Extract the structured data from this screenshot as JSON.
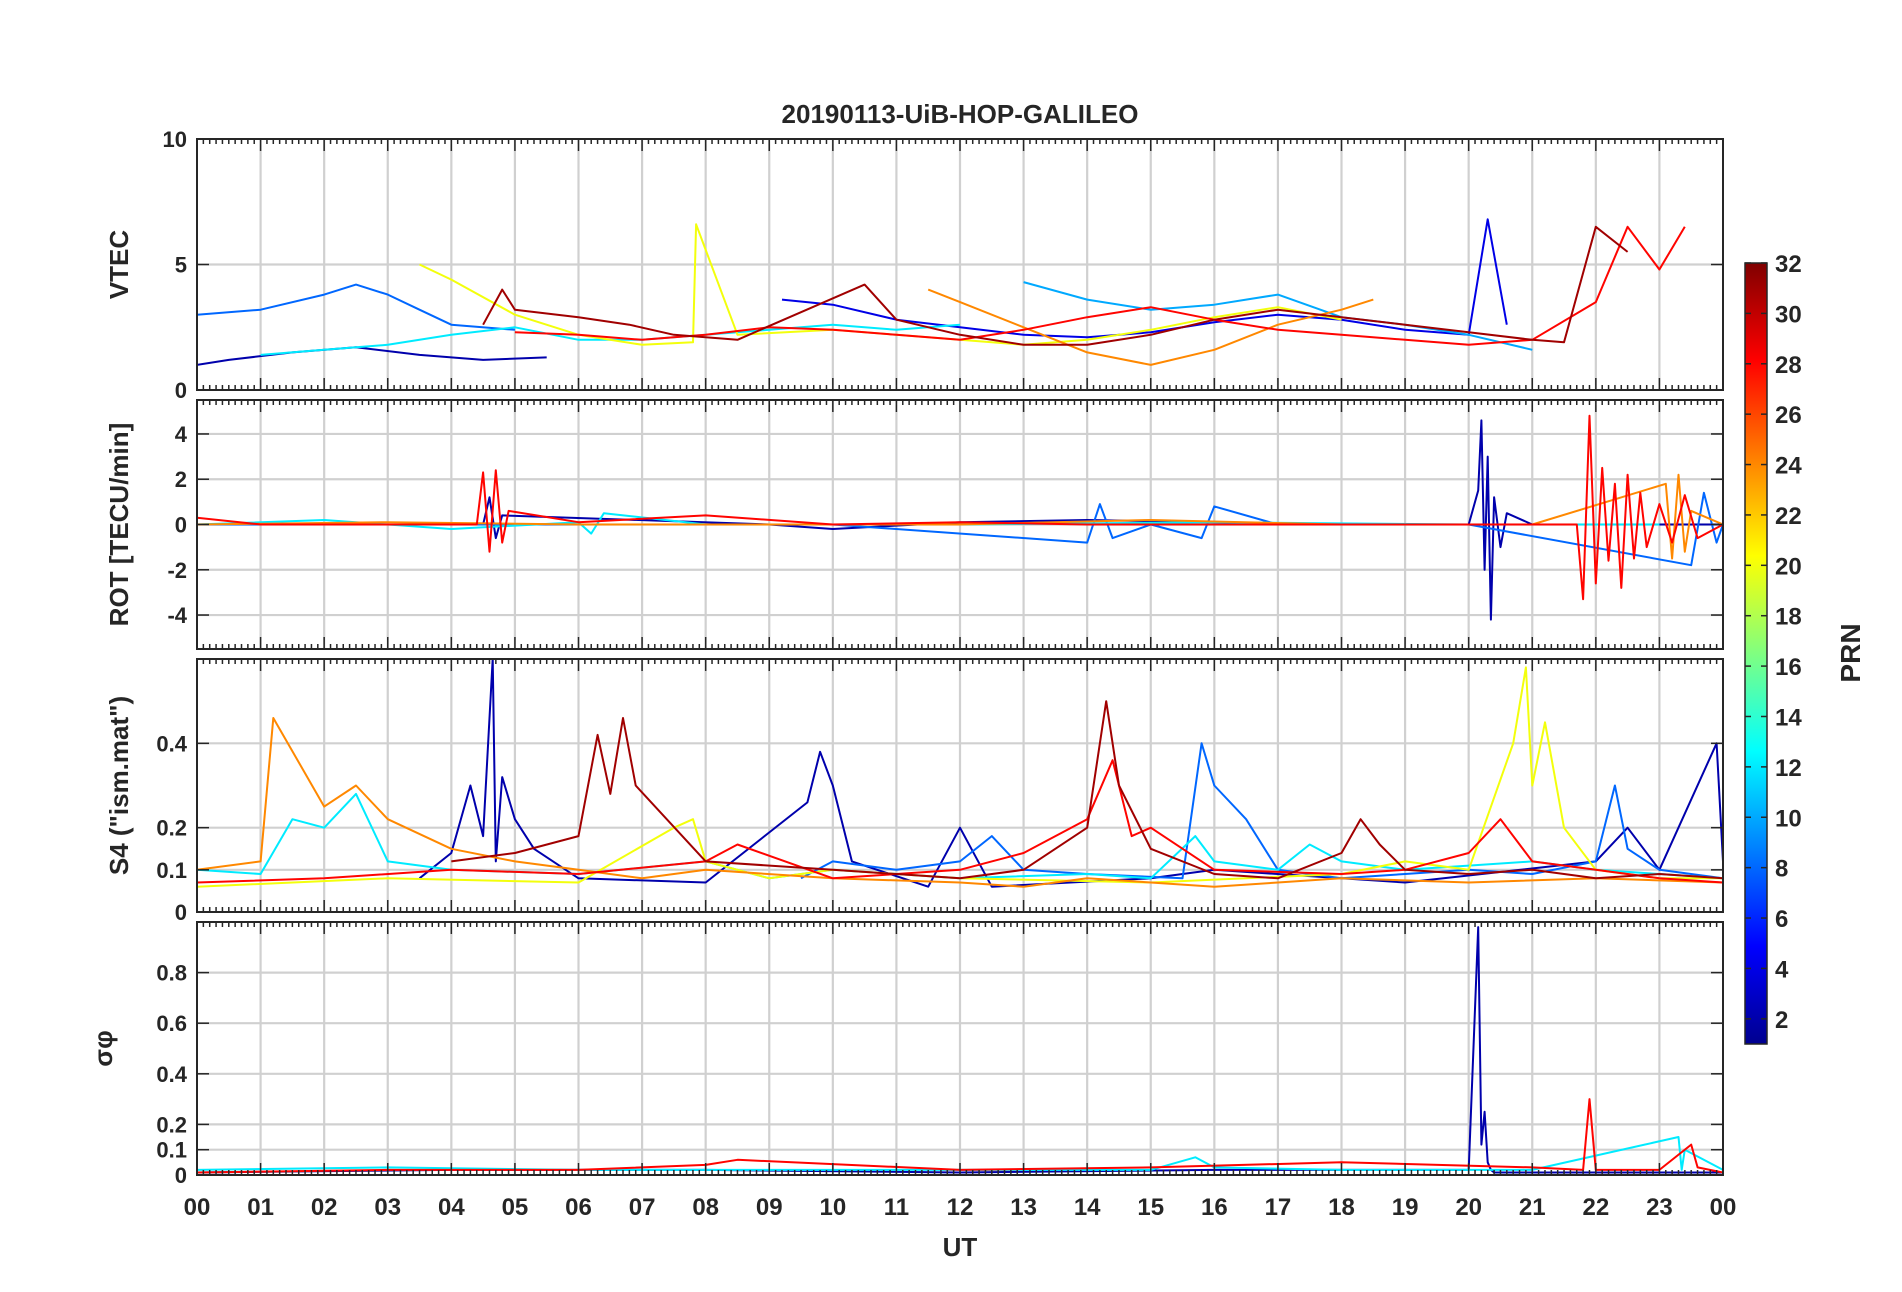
{
  "title": "20190113-UiB-HOP-GALILEO",
  "x_axis": {
    "label": "UT",
    "ticks": [
      "00",
      "01",
      "02",
      "03",
      "04",
      "05",
      "06",
      "07",
      "08",
      "09",
      "10",
      "11",
      "12",
      "13",
      "14",
      "15",
      "16",
      "17",
      "18",
      "19",
      "20",
      "21",
      "22",
      "23",
      "00"
    ],
    "range_hours": [
      0,
      24
    ]
  },
  "colorbar": {
    "label": "PRN",
    "range": [
      1,
      32
    ],
    "tick_labels": [
      "2",
      "4",
      "6",
      "8",
      "10",
      "12",
      "14",
      "16",
      "18",
      "20",
      "22",
      "24",
      "26",
      "28",
      "30",
      "32"
    ],
    "colormap": "jet",
    "stops": [
      "#00008f",
      "#0000ff",
      "#0080ff",
      "#00ffff",
      "#80ff80",
      "#ffff00",
      "#ff8000",
      "#ff0000",
      "#800000"
    ]
  },
  "chart_data": [
    {
      "type": "line",
      "ylabel": "VTEC",
      "ylim": [
        0,
        10
      ],
      "yticks": [
        0,
        5,
        10
      ],
      "ytick_labels": [
        "0",
        "5",
        "10"
      ],
      "grid": true,
      "series": [
        {
          "prn": 2,
          "x": [
            0,
            0.5,
            1.5,
            2.5,
            3.5,
            4.5,
            5.5
          ],
          "y": [
            1.0,
            1.2,
            1.5,
            1.7,
            1.4,
            1.2,
            1.3
          ]
        },
        {
          "prn": 4,
          "x": [
            9.2,
            10,
            11,
            12,
            13,
            14,
            15,
            16,
            17,
            18,
            19,
            20,
            20.3,
            20.6
          ],
          "y": [
            3.6,
            3.4,
            2.8,
            2.5,
            2.2,
            2.1,
            2.3,
            2.7,
            3.0,
            2.8,
            2.4,
            2.2,
            6.8,
            2.6
          ]
        },
        {
          "prn": 8,
          "x": [
            0,
            1,
            2,
            2.5,
            3,
            3.5,
            4,
            5
          ],
          "y": [
            3.0,
            3.2,
            3.8,
            4.2,
            3.8,
            3.2,
            2.6,
            2.4
          ]
        },
        {
          "prn": 10,
          "x": [
            13,
            14,
            15,
            16,
            16.5,
            17,
            18,
            19,
            20,
            21
          ],
          "y": [
            4.3,
            3.6,
            3.2,
            3.4,
            3.6,
            3.8,
            2.9,
            2.6,
            2.2,
            1.6
          ]
        },
        {
          "prn": 12,
          "x": [
            1,
            2,
            3,
            4,
            5,
            6,
            7,
            8,
            9,
            10,
            11,
            12
          ],
          "y": [
            1.4,
            1.6,
            1.8,
            2.2,
            2.5,
            2.0,
            2.0,
            2.2,
            2.4,
            2.6,
            2.4,
            2.6
          ]
        },
        {
          "prn": 20,
          "x": [
            3.5,
            4,
            5,
            6,
            7,
            7.8,
            7.85,
            8.5,
            10,
            11,
            12,
            13,
            14,
            15,
            16,
            17,
            18
          ],
          "y": [
            5.0,
            4.4,
            3.0,
            2.2,
            1.8,
            1.9,
            6.6,
            2.2,
            2.4,
            2.2,
            2.0,
            1.8,
            2.0,
            2.4,
            2.9,
            3.3,
            2.8
          ]
        },
        {
          "prn": 24,
          "x": [
            11.5,
            12,
            13,
            14,
            15,
            16,
            17,
            18,
            18.5
          ],
          "y": [
            4.0,
            3.5,
            2.5,
            1.5,
            1.0,
            1.6,
            2.6,
            3.2,
            3.6
          ]
        },
        {
          "prn": 28,
          "x": [
            5,
            6,
            7,
            8,
            9,
            10,
            11,
            12,
            13,
            14,
            15,
            16,
            17,
            18,
            19,
            20,
            21,
            22,
            22.5,
            23,
            23.4
          ],
          "y": [
            2.3,
            2.2,
            2.0,
            2.2,
            2.5,
            2.4,
            2.2,
            2.0,
            2.4,
            2.9,
            3.3,
            2.8,
            2.4,
            2.2,
            2.0,
            1.8,
            2.0,
            3.5,
            6.5,
            4.8,
            6.5
          ]
        },
        {
          "prn": 31,
          "x": [
            4.5,
            4.8,
            5,
            6,
            6.8,
            7.5,
            8.5,
            9.5,
            10.5,
            11,
            12,
            13,
            14,
            15,
            16,
            17,
            18,
            19,
            20,
            21,
            21.5,
            22,
            22.5
          ],
          "y": [
            2.6,
            4.0,
            3.2,
            2.9,
            2.6,
            2.2,
            2.0,
            3.1,
            4.2,
            2.8,
            2.2,
            1.8,
            1.8,
            2.2,
            2.8,
            3.2,
            2.9,
            2.6,
            2.3,
            2.0,
            1.9,
            6.5,
            5.5
          ]
        }
      ]
    },
    {
      "type": "line",
      "ylabel": "ROT [TECU/min]",
      "ylim": [
        -5.5,
        5.5
      ],
      "yticks": [
        -4,
        -2,
        0,
        2,
        4
      ],
      "ytick_labels": [
        "-4",
        "-2",
        "0",
        "2",
        "4"
      ],
      "grid": true,
      "series": [
        {
          "prn": 2,
          "x": [
            0,
            4.5,
            4.6,
            4.7,
            4.8,
            9,
            10,
            12,
            14,
            18,
            20,
            20.15,
            20.2,
            20.25,
            20.3,
            20.35,
            20.4,
            20.5,
            20.6,
            21,
            24
          ],
          "y": [
            0,
            0,
            1.2,
            -0.6,
            0.4,
            0,
            -0.2,
            0.1,
            0.2,
            0,
            0,
            1.5,
            4.6,
            -2.0,
            3.0,
            -4.2,
            1.2,
            -1.0,
            0.5,
            0,
            0
          ]
        },
        {
          "prn": 8,
          "x": [
            0,
            5,
            10,
            14,
            14.2,
            14.4,
            15,
            15.8,
            16,
            17,
            20,
            23.5,
            23.7,
            23.9,
            24
          ],
          "y": [
            0,
            0,
            0,
            -0.8,
            0.9,
            -0.6,
            0,
            -0.6,
            0.8,
            0,
            0,
            -1.8,
            1.4,
            -0.8,
            0
          ]
        },
        {
          "prn": 12,
          "x": [
            0,
            2,
            4,
            6,
            6.2,
            6.4,
            8,
            12,
            16,
            20,
            22,
            23
          ],
          "y": [
            0,
            0.2,
            -0.2,
            0.1,
            -0.4,
            0.5,
            0,
            0,
            0.1,
            0,
            0,
            0
          ]
        },
        {
          "prn": 24,
          "x": [
            0,
            3,
            6,
            9,
            12,
            15,
            18,
            21,
            23.1,
            23.2,
            23.3,
            23.4,
            23.5,
            24
          ],
          "y": [
            0,
            0.1,
            0,
            0,
            0,
            0.2,
            0,
            0,
            1.8,
            -1.5,
            2.2,
            -1.2,
            0.6,
            0
          ]
        },
        {
          "prn": 28,
          "x": [
            0,
            1,
            3,
            4.4,
            4.5,
            4.6,
            4.7,
            4.8,
            4.9,
            6,
            8,
            10,
            12,
            14,
            16,
            18,
            20,
            21.7,
            21.8,
            21.9,
            22.0,
            22.1,
            22.2,
            22.3,
            22.4,
            22.5,
            22.6,
            22.7,
            22.8,
            23,
            23.2,
            23.4,
            23.6,
            24
          ],
          "y": [
            0.3,
            0,
            0,
            0,
            2.3,
            -1.2,
            2.4,
            -0.8,
            0.6,
            0.1,
            0.4,
            0,
            0.1,
            0,
            0,
            0,
            0,
            0,
            -3.3,
            4.8,
            -2.6,
            2.5,
            -1.6,
            1.8,
            -2.8,
            2.2,
            -1.5,
            1.4,
            -1.0,
            0.9,
            -0.8,
            1.3,
            -0.6,
            0
          ]
        }
      ]
    },
    {
      "type": "line",
      "ylabel": "S4 (\"ism.mat\")",
      "ylim": [
        0,
        0.6
      ],
      "yticks": [
        0,
        0.1,
        0.2,
        0.4
      ],
      "ytick_labels": [
        "0",
        "0.1",
        "0.2",
        "0.4"
      ],
      "grid": true,
      "series": [
        {
          "prn": 2,
          "x": [
            3.5,
            4,
            4.3,
            4.5,
            4.65,
            4.7,
            4.8,
            5,
            5.3,
            6,
            8,
            9.6,
            9.8,
            10,
            10.3,
            11.5,
            12,
            12.5,
            15,
            16,
            19,
            22,
            22.5,
            23,
            23.9,
            24
          ],
          "y": [
            0.08,
            0.14,
            0.3,
            0.18,
            0.6,
            0.12,
            0.32,
            0.22,
            0.15,
            0.08,
            0.07,
            0.26,
            0.38,
            0.3,
            0.12,
            0.06,
            0.2,
            0.06,
            0.08,
            0.1,
            0.07,
            0.12,
            0.2,
            0.1,
            0.4,
            0.12
          ]
        },
        {
          "prn": 8,
          "x": [
            9.5,
            10,
            11,
            12,
            12.5,
            13,
            14,
            15.5,
            15.8,
            16,
            16.5,
            17,
            18,
            19,
            20,
            21,
            22,
            22.3,
            22.5,
            23,
            24
          ],
          "y": [
            0.08,
            0.12,
            0.1,
            0.12,
            0.18,
            0.1,
            0.09,
            0.08,
            0.4,
            0.3,
            0.22,
            0.1,
            0.08,
            0.09,
            0.1,
            0.09,
            0.12,
            0.3,
            0.15,
            0.1,
            0.08
          ]
        },
        {
          "prn": 12,
          "x": [
            0,
            1,
            1.5,
            2,
            2.5,
            3,
            4,
            6,
            8,
            9,
            10,
            12,
            14,
            15,
            15.7,
            16,
            17,
            17.5,
            18,
            19,
            20,
            21,
            22,
            23,
            24
          ],
          "y": [
            0.1,
            0.09,
            0.22,
            0.2,
            0.28,
            0.12,
            0.1,
            0.09,
            0.12,
            0.08,
            0.1,
            0.08,
            0.09,
            0.08,
            0.18,
            0.12,
            0.1,
            0.16,
            0.12,
            0.1,
            0.11,
            0.12,
            0.1,
            0.09,
            0.08
          ]
        },
        {
          "prn": 20,
          "x": [
            0,
            3,
            6,
            7.5,
            7.8,
            8,
            9,
            10,
            12,
            15,
            18,
            19,
            20,
            20.7,
            20.9,
            21,
            21.2,
            21.5,
            22,
            23,
            24
          ],
          "y": [
            0.06,
            0.08,
            0.07,
            0.2,
            0.22,
            0.12,
            0.08,
            0.1,
            0.08,
            0.07,
            0.09,
            0.12,
            0.1,
            0.4,
            0.58,
            0.3,
            0.45,
            0.2,
            0.1,
            0.08,
            0.08
          ]
        },
        {
          "prn": 24,
          "x": [
            0,
            1,
            1.2,
            2,
            2.5,
            3,
            4,
            5,
            6,
            7,
            8,
            10,
            12,
            13,
            14,
            15,
            16,
            17,
            18,
            20,
            22,
            24
          ],
          "y": [
            0.1,
            0.12,
            0.46,
            0.25,
            0.3,
            0.22,
            0.15,
            0.12,
            0.1,
            0.08,
            0.1,
            0.08,
            0.07,
            0.06,
            0.08,
            0.07,
            0.06,
            0.07,
            0.08,
            0.07,
            0.08,
            0.07
          ]
        },
        {
          "prn": 28,
          "x": [
            0,
            2,
            4,
            6,
            8,
            8.5,
            10,
            12,
            13,
            14,
            14.4,
            14.7,
            15,
            16,
            18,
            19,
            20,
            20.5,
            21,
            22,
            23,
            24
          ],
          "y": [
            0.07,
            0.08,
            0.1,
            0.09,
            0.12,
            0.16,
            0.08,
            0.1,
            0.14,
            0.22,
            0.36,
            0.18,
            0.2,
            0.1,
            0.09,
            0.1,
            0.14,
            0.22,
            0.12,
            0.1,
            0.08,
            0.07
          ]
        },
        {
          "prn": 31,
          "x": [
            4,
            5,
            6,
            6.3,
            6.5,
            6.7,
            6.9,
            8,
            10,
            11,
            12,
            13,
            14,
            14.3,
            14.5,
            15,
            16,
            17,
            18,
            18.3,
            18.6,
            19,
            20,
            21,
            22,
            23,
            24
          ],
          "y": [
            0.12,
            0.14,
            0.18,
            0.42,
            0.28,
            0.46,
            0.3,
            0.12,
            0.1,
            0.09,
            0.08,
            0.1,
            0.2,
            0.5,
            0.3,
            0.15,
            0.09,
            0.08,
            0.14,
            0.22,
            0.16,
            0.1,
            0.09,
            0.1,
            0.08,
            0.09,
            0.08
          ]
        }
      ]
    },
    {
      "type": "line",
      "ylabel": "σφ",
      "ylim": [
        0,
        1
      ],
      "yticks": [
        0,
        0.1,
        0.2,
        0.4,
        0.6,
        0.8
      ],
      "ytick_labels": [
        "0",
        "0.1",
        "0.2",
        "0.4",
        "0.6",
        "0.8"
      ],
      "grid": true,
      "series": [
        {
          "prn": 2,
          "x": [
            0,
            4,
            8,
            12,
            16,
            20,
            20.15,
            20.2,
            20.25,
            20.3,
            20.35,
            20.4,
            24
          ],
          "y": [
            0.01,
            0.02,
            0.02,
            0.01,
            0.02,
            0.02,
            0.98,
            0.12,
            0.25,
            0.05,
            0.02,
            0.01,
            0.01
          ]
        },
        {
          "prn": 12,
          "x": [
            0,
            3,
            6,
            9,
            12,
            15,
            15.7,
            16,
            18,
            21,
            23.3,
            23.35,
            23.4,
            24
          ],
          "y": [
            0.02,
            0.03,
            0.02,
            0.02,
            0.02,
            0.02,
            0.07,
            0.03,
            0.02,
            0.02,
            0.15,
            0.02,
            0.1,
            0.02
          ]
        },
        {
          "prn": 28,
          "x": [
            0,
            3,
            6,
            8,
            8.5,
            12,
            15,
            18,
            21,
            21.8,
            21.9,
            22,
            23,
            23.5,
            23.6,
            24
          ],
          "y": [
            0.01,
            0.02,
            0.02,
            0.04,
            0.06,
            0.02,
            0.03,
            0.05,
            0.03,
            0.02,
            0.3,
            0.02,
            0.02,
            0.12,
            0.03,
            0.01
          ]
        }
      ]
    }
  ]
}
